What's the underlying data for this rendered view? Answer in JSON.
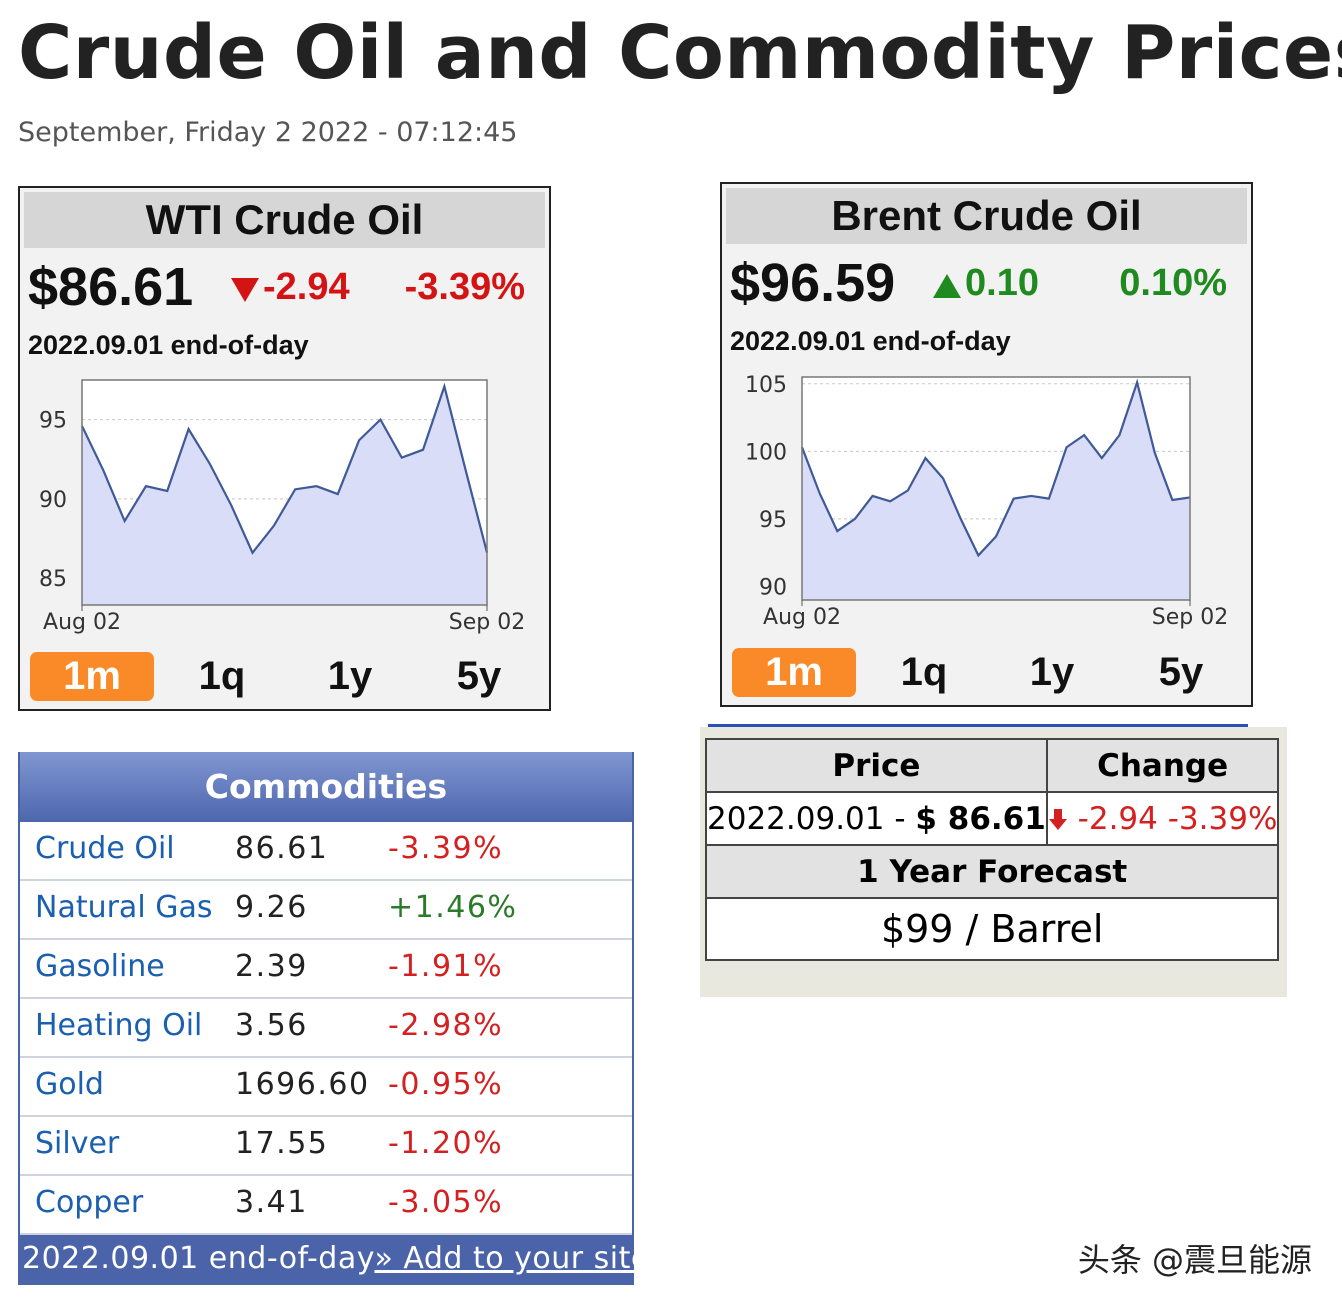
{
  "header": {
    "title": "Crude Oil and Commodity Prices",
    "datetime": "September, Friday 2 2022 - 07:12:45"
  },
  "widgets": [
    {
      "title": "WTI Crude Oil",
      "price": "$86.61",
      "change": "-2.94",
      "change_pct": "-3.39%",
      "direction": "down",
      "date": "2022.09.01 end-of-day",
      "periods": [
        "1m",
        "1q",
        "1y",
        "5y"
      ],
      "active_period": 0,
      "chart": {
        "type": "area",
        "color": "#3f5a97",
        "fill_color": "#d9ddf8",
        "grid": true,
        "categories": [
          "Aug 02",
          null,
          null,
          null,
          null,
          null,
          null,
          null,
          null,
          null,
          null,
          null,
          null,
          null,
          null,
          null,
          null,
          null,
          null,
          "Sep 02"
        ],
        "values": [
          94.6,
          91.8,
          88.6,
          90.8,
          90.5,
          94.4,
          92.2,
          89.6,
          86.6,
          88.3,
          90.6,
          90.8,
          90.3,
          93.7,
          95.0,
          92.6,
          93.1,
          97.1,
          91.8,
          86.61
        ],
        "ylim": [
          83.3,
          97.5
        ],
        "yticks": [
          85,
          90,
          95
        ]
      }
    },
    {
      "title": "Brent Crude Oil",
      "price": "$96.59",
      "change": "0.10",
      "change_pct": "0.10%",
      "direction": "up",
      "date": "2022.09.01 end-of-day",
      "periods": [
        "1m",
        "1q",
        "1y",
        "5y"
      ],
      "active_period": 0,
      "chart": {
        "type": "area",
        "color": "#3f5a97",
        "fill_color": "#d9ddf8",
        "grid": true,
        "categories": [
          "Aug 02",
          null,
          null,
          null,
          null,
          null,
          null,
          null,
          null,
          null,
          null,
          null,
          null,
          null,
          null,
          null,
          null,
          null,
          null,
          null,
          null,
          null,
          "Sep 02"
        ],
        "values": [
          100.3,
          96.9,
          94.1,
          95.0,
          96.7,
          96.3,
          97.1,
          99.5,
          98.0,
          95.0,
          92.3,
          93.7,
          96.5,
          96.7,
          96.5,
          100.3,
          101.2,
          99.5,
          101.2,
          105.1,
          99.9,
          96.4,
          96.59
        ],
        "ylim": [
          89,
          105.5
        ],
        "yticks": [
          90,
          95,
          100,
          105
        ]
      }
    }
  ],
  "commodities": {
    "title": "Commodities",
    "rows": [
      [
        "Crude Oil",
        "86.61",
        "-3.39%"
      ],
      [
        "Natural Gas",
        "9.26",
        "+1.46%"
      ],
      [
        "Gasoline",
        "2.39",
        "-1.91%"
      ],
      [
        "Heating Oil",
        "3.56",
        "-2.98%"
      ],
      [
        "Gold",
        "1696.60",
        "-0.95%"
      ],
      [
        "Silver",
        "17.55",
        "-1.20%"
      ],
      [
        "Copper",
        "3.41",
        "-3.05%"
      ]
    ],
    "footer": "2022.09.01 end-of-day",
    "link": "» Add to your site"
  },
  "price_box": {
    "headers": [
      "Price",
      "Change"
    ],
    "date": "2022.09.01 - ",
    "price": "$ 86.61",
    "change": "-2.94 -3.39%",
    "forecast_title": "1 Year Forecast",
    "forecast": "$99 / Barrel"
  },
  "watermark": "头条 @震旦能源"
}
